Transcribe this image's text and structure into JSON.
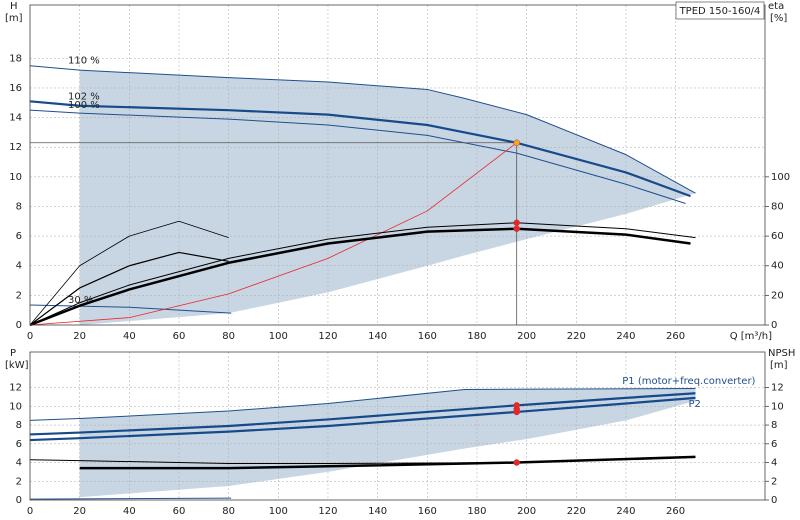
{
  "title": "TPED 150-160/4",
  "chart_data": [
    {
      "type": "line",
      "y_label": "H",
      "y_unit": "[m]",
      "y2_label": "eta",
      "y2_unit": "[%]",
      "x_label": "Q [m³/h]",
      "xlim": [
        0,
        296
      ],
      "ylim": [
        0,
        21.6
      ],
      "y2lim": [
        0,
        216
      ],
      "xticks": [
        0,
        20,
        40,
        60,
        80,
        100,
        120,
        140,
        160,
        180,
        200,
        220,
        240,
        260
      ],
      "yticks": [
        0,
        2,
        4,
        6,
        8,
        10,
        12,
        14,
        16,
        18
      ],
      "y2ticks": [
        0,
        20,
        40,
        60,
        80,
        100
      ],
      "grid": true,
      "area": {
        "color": "#c8d6e4",
        "x": [
          20,
          80,
          120,
          160,
          175,
          200,
          240,
          268
        ],
        "upper": [
          17.2,
          16.7,
          16.4,
          15.9,
          15.3,
          14.2,
          11.5,
          8.9
        ],
        "lower": [
          0,
          0.8,
          2.2,
          4.0,
          4.7,
          5.8,
          7.5,
          8.9
        ]
      },
      "series": [
        {
          "name": "110 %",
          "color": "#1f4f8c",
          "width": 1,
          "x": [
            0,
            20,
            80,
            120,
            160,
            175,
            200,
            240,
            268
          ],
          "values": [
            17.5,
            17.2,
            16.7,
            16.4,
            15.9,
            15.3,
            14.2,
            11.5,
            8.9
          ]
        },
        {
          "name": "102 %",
          "color": "#174a8b",
          "width": 2.2,
          "x": [
            0,
            20,
            80,
            120,
            160,
            196,
            240,
            266
          ],
          "values": [
            15.1,
            14.8,
            14.5,
            14.2,
            13.5,
            12.3,
            10.3,
            8.7
          ]
        },
        {
          "name": "100 %",
          "color": "#1f4f8c",
          "width": 1,
          "x": [
            0,
            20,
            80,
            120,
            160,
            196,
            240,
            264
          ],
          "values": [
            14.5,
            14.3,
            13.9,
            13.5,
            12.8,
            11.6,
            9.5,
            8.2
          ]
        },
        {
          "name": "30 %",
          "color": "#1f4f8c",
          "width": 1,
          "x": [
            0,
            40,
            81
          ],
          "values": [
            1.35,
            1.2,
            0.8
          ]
        },
        {
          "color": "#e8262a",
          "width": 0.8,
          "x": [
            0,
            40,
            80,
            120,
            160,
            196
          ],
          "values": [
            0,
            0.5,
            2.1,
            4.5,
            7.7,
            12.3
          ]
        },
        {
          "color": "#000000",
          "width": 0.8,
          "axis": "y2",
          "x": [
            0,
            20,
            40,
            60,
            80
          ],
          "values": [
            0,
            40,
            60,
            70,
            59
          ]
        },
        {
          "color": "#000000",
          "width": 1.2,
          "axis": "y2",
          "x": [
            0,
            20,
            40,
            60,
            80
          ],
          "values": [
            0,
            25,
            40,
            49,
            43
          ]
        },
        {
          "color": "#000000",
          "width": 1,
          "axis": "y2",
          "x": [
            0,
            20,
            40,
            80,
            120,
            160,
            196,
            240,
            268
          ],
          "values": [
            0,
            15,
            27,
            45,
            58,
            66,
            69,
            65,
            59
          ]
        },
        {
          "color": "#000000",
          "width": 2.5,
          "axis": "y2",
          "x": [
            0,
            20,
            40,
            80,
            120,
            160,
            196,
            240,
            266
          ],
          "values": [
            0,
            13,
            24,
            42,
            55,
            63,
            65,
            61,
            55
          ]
        }
      ],
      "points": [
        {
          "x": 196,
          "y": 12.3,
          "color": "#f5a623",
          "crosshair": true
        },
        {
          "x": 196,
          "y": 69,
          "axis": "y2",
          "color": "#e8262a"
        },
        {
          "x": 196,
          "y": 65,
          "axis": "y2",
          "color": "#e8262a"
        }
      ]
    },
    {
      "type": "line",
      "y_label": "P",
      "y_unit": "[kW]",
      "y2_label": "NPSH",
      "y2_unit": "[m]",
      "xlim": [
        0,
        296
      ],
      "ylim": [
        0,
        15.8
      ],
      "y2lim": [
        0,
        15.8
      ],
      "yticks": [
        0,
        2,
        4,
        6,
        8,
        10,
        12
      ],
      "y2ticks": [
        0,
        2,
        4,
        6,
        8,
        10,
        12
      ],
      "grid": true,
      "area": {
        "color": "#c8d6e4",
        "x": [
          20,
          80,
          120,
          175,
          200,
          240,
          268
        ],
        "upper": [
          8.7,
          9.5,
          10.3,
          11.8,
          11.85,
          11.9,
          11.9
        ],
        "lower": [
          0.3,
          1.5,
          3.0,
          5.5,
          6.5,
          8.5,
          10.6
        ]
      },
      "series": [
        {
          "color": "#1f4f8c",
          "width": 1,
          "x": [
            0,
            20,
            80,
            120,
            175,
            268
          ],
          "values": [
            8.5,
            8.7,
            9.5,
            10.3,
            11.8,
            11.9
          ]
        },
        {
          "name": "P1 (motor+freq.converter)",
          "label_at": "end-above",
          "color": "#174a8b",
          "width": 2.2,
          "x": [
            0,
            20,
            80,
            120,
            160,
            196,
            240,
            268
          ],
          "values": [
            7.0,
            7.2,
            7.9,
            8.6,
            9.4,
            10.1,
            10.9,
            11.4
          ]
        },
        {
          "name": "P2",
          "label_at": "end-below",
          "color": "#174a8b",
          "width": 2.2,
          "x": [
            0,
            20,
            80,
            120,
            160,
            196,
            240,
            268
          ],
          "values": [
            6.4,
            6.6,
            7.3,
            7.9,
            8.7,
            9.4,
            10.3,
            10.9
          ]
        },
        {
          "color": "#1f4f8c",
          "width": 1,
          "x": [
            0,
            81
          ],
          "values": [
            0.1,
            0.2
          ]
        },
        {
          "color": "#000000",
          "width": 1,
          "axis": "y2",
          "x": [
            0,
            20,
            80,
            120,
            196,
            268
          ],
          "values": [
            4.3,
            4.2,
            3.9,
            3.9,
            4.0,
            4.6
          ]
        },
        {
          "color": "#000000",
          "width": 2.5,
          "axis": "y2",
          "x": [
            20,
            80,
            120,
            196,
            268
          ],
          "values": [
            3.4,
            3.4,
            3.6,
            4.0,
            4.6
          ]
        }
      ],
      "points": [
        {
          "x": 196,
          "y": 10.1,
          "color": "#e8262a"
        },
        {
          "x": 196,
          "y": 9.7,
          "color": "#e8262a"
        },
        {
          "x": 196,
          "y": 9.4,
          "color": "#e8262a"
        },
        {
          "x": 196,
          "y": 4.0,
          "axis": "y2",
          "color": "#e8262a"
        }
      ]
    }
  ]
}
